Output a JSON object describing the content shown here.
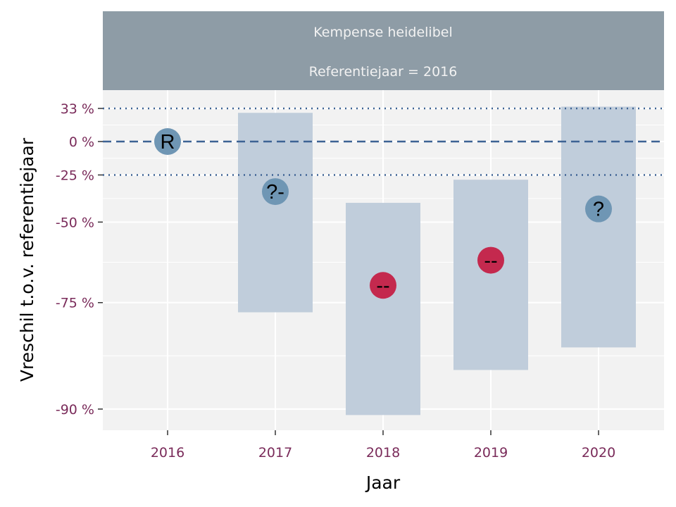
{
  "chart_data": {
    "type": "scatter",
    "strip_title": "Kempense heidelibel",
    "strip_subtitle": "Referentiejaar = 2016",
    "xlabel": "Jaar",
    "ylabel": "Vreschil t.o.v. referentiejaar",
    "y_scale": "log-ratio",
    "grid": true,
    "reference_lines": [
      {
        "value": 33,
        "style": "dotted"
      },
      {
        "value": 0,
        "style": "dashed"
      },
      {
        "value": -25,
        "style": "dotted"
      }
    ],
    "y_ticks": [
      {
        "value": 33,
        "label": "33 %"
      },
      {
        "value": 0,
        "label": "0 %"
      },
      {
        "value": -25,
        "label": "-25 %"
      },
      {
        "value": -50,
        "label": "-50 %"
      },
      {
        "value": -75,
        "label": "-75 %"
      },
      {
        "value": -90,
        "label": "-90 %"
      }
    ],
    "x_ticks": [
      "2016",
      "2017",
      "2018",
      "2019",
      "2020"
    ],
    "points": [
      {
        "year": "2016",
        "estimate": 0,
        "lower": null,
        "upper": null,
        "label": "R",
        "color": "#6f96b4"
      },
      {
        "year": "2017",
        "estimate": -35,
        "lower": -77,
        "upper": 28,
        "label": "?-",
        "color": "#6f96b4"
      },
      {
        "year": "2018",
        "estimate": -71,
        "lower": -90.5,
        "upper": -41,
        "label": "--",
        "color": "#c4294e"
      },
      {
        "year": "2019",
        "estimate": -64,
        "lower": -86,
        "upper": -28,
        "label": "--",
        "color": "#c4294e"
      },
      {
        "year": "2020",
        "estimate": -44,
        "lower": -83,
        "upper": 35,
        "label": "?",
        "color": "#6f96b4"
      }
    ]
  },
  "colors": {
    "panel_background": "#f2f2f2",
    "strip_background": "#8e9ca6",
    "interval_fill": "#bdcad9",
    "reference_line": "#3d6394",
    "tick_label": "#7a2b5a"
  }
}
